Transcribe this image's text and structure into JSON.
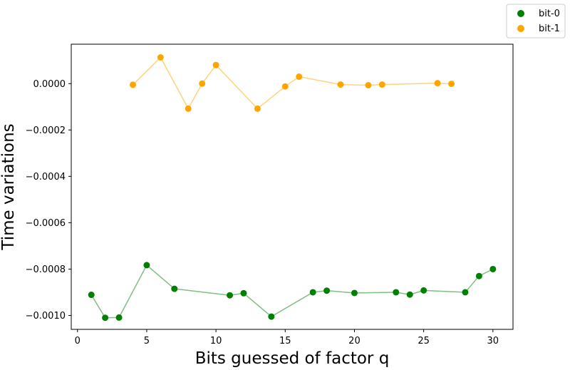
{
  "chart_data": {
    "type": "scatter",
    "title": "",
    "xlabel": "Bits guessed of factor q",
    "ylabel": "Time variations",
    "xlim": [
      -0.45,
      31.45
    ],
    "ylim": [
      -0.00106,
      0.00017
    ],
    "xticks": [
      0,
      5,
      10,
      15,
      20,
      25,
      30
    ],
    "xtick_labels": [
      "0",
      "5",
      "10",
      "15",
      "20",
      "25",
      "30"
    ],
    "yticks": [
      0.0,
      -0.0002,
      -0.0004,
      -0.0006,
      -0.0008,
      -0.001
    ],
    "ytick_labels": [
      "0.0000",
      "−0.0002",
      "−0.0004",
      "−0.0006",
      "−0.0008",
      "−0.0010"
    ],
    "grid": false,
    "legend": "outside top-right",
    "series": [
      {
        "name": "bit-0",
        "color": "#008000",
        "x": [
          1,
          2,
          3,
          5,
          7,
          11,
          12,
          14,
          17,
          18,
          20,
          23,
          24,
          25,
          28,
          29,
          30
        ],
        "y": [
          -0.000911,
          -0.00101,
          -0.001009,
          -0.000783,
          -0.000885,
          -0.000913,
          -0.000904,
          -0.001005,
          -0.0009,
          -0.000893,
          -0.000903,
          -0.0009,
          -0.00091,
          -0.000892,
          -0.0009,
          -0.00083,
          -0.0008
        ]
      },
      {
        "name": "bit-1",
        "color": "#ffa500",
        "x": [
          4,
          6,
          8,
          9,
          10,
          13,
          15,
          16,
          19,
          21,
          22,
          26,
          27
        ],
        "y": [
          -5e-06,
          0.000113,
          -0.000108,
          0.0,
          8e-05,
          -0.000108,
          -1.2e-05,
          3e-05,
          -4e-06,
          -7e-06,
          -4e-06,
          2e-06,
          -1e-06
        ]
      }
    ]
  }
}
